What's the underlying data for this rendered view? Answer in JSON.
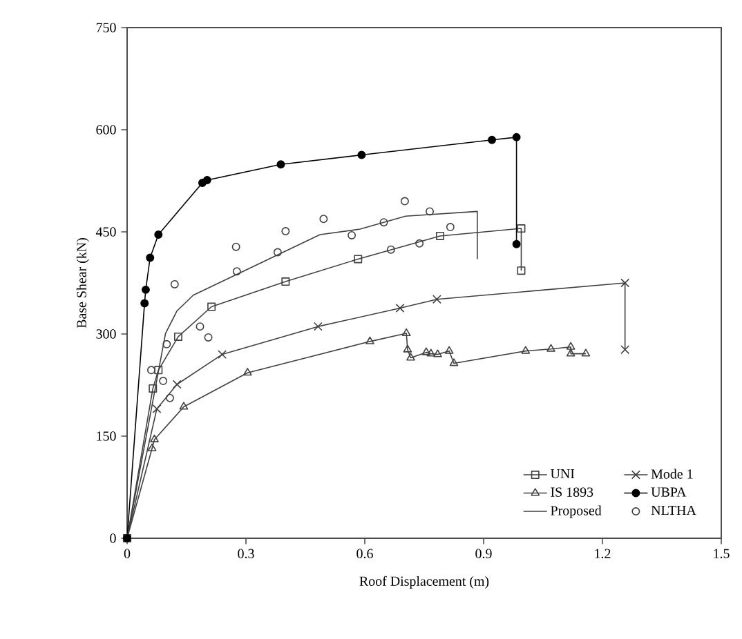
{
  "chart_data": {
    "type": "line",
    "xlabel": "Roof Displacement (m)",
    "ylabel": "Base Shear (kN)",
    "xlim": [
      0,
      1.5
    ],
    "ylim": [
      0,
      750
    ],
    "xticks": [
      0,
      0.3,
      0.6,
      0.9,
      1.2,
      1.5
    ],
    "yticks": [
      0,
      150,
      300,
      450,
      600,
      750
    ],
    "grid": false,
    "legend": "bottom right",
    "series": [
      {
        "name": "UNI",
        "color": "#404040",
        "marker": "square",
        "x": [
          0,
          0.065,
          0.079,
          0.129,
          0.213,
          0.4,
          0.583,
          0.79,
          0.995,
          0.995
        ],
        "values": [
          0,
          220,
          247,
          296,
          340,
          377,
          410,
          444,
          455,
          393
        ]
      },
      {
        "name": "Mode 1",
        "color": "#404040",
        "marker": "cross",
        "x": [
          0,
          0.075,
          0.126,
          0.24,
          0.482,
          0.689,
          0.782,
          1.257,
          1.257
        ],
        "values": [
          0,
          190,
          226,
          270,
          311,
          338,
          351,
          375,
          277
        ]
      },
      {
        "name": "IS 1893",
        "color": "#404040",
        "marker": "triangle",
        "x": [
          0,
          0.063,
          0.069,
          0.143,
          0.304,
          0.613,
          0.705,
          0.708,
          0.716,
          0.755,
          0.767,
          0.784,
          0.813,
          0.825,
          1.006,
          1.07,
          1.12,
          1.12,
          1.158
        ],
        "values": [
          0,
          132,
          145,
          193,
          243,
          289,
          301,
          277,
          265,
          273,
          271,
          270,
          275,
          257,
          275,
          278,
          281,
          271,
          271
        ]
      },
      {
        "name": "UBPA",
        "color": "#000000",
        "marker": "circle",
        "x": [
          0,
          0.044,
          0.047,
          0.058,
          0.079,
          0.19,
          0.202,
          0.388,
          0.592,
          0.921,
          0.983,
          0.983
        ],
        "values": [
          0,
          345,
          365,
          412,
          446,
          522,
          526,
          549,
          563,
          585,
          589,
          432
        ]
      },
      {
        "name": "Proposed",
        "color": "#404040",
        "marker": "none",
        "x": [
          0,
          0.097,
          0.126,
          0.167,
          0.487,
          0.588,
          0.703,
          0.884,
          0.884
        ],
        "values": [
          0,
          301,
          334,
          357,
          446,
          454,
          473,
          480,
          410
        ]
      },
      {
        "name": "NLTHA",
        "type": "scatter",
        "color": "#404040",
        "marker": "circle",
        "x": [
          0.061,
          0.091,
          0.108,
          0.1,
          0.12,
          0.184,
          0.205,
          0.275,
          0.277,
          0.38,
          0.4,
          0.496,
          0.567,
          0.648,
          0.666,
          0.701,
          0.738,
          0.764,
          0.816
        ],
        "values": [
          247,
          231,
          206,
          285,
          373,
          311,
          295,
          428,
          392,
          420,
          451,
          469,
          445,
          464,
          424,
          495,
          433,
          480,
          457
        ]
      }
    ]
  }
}
